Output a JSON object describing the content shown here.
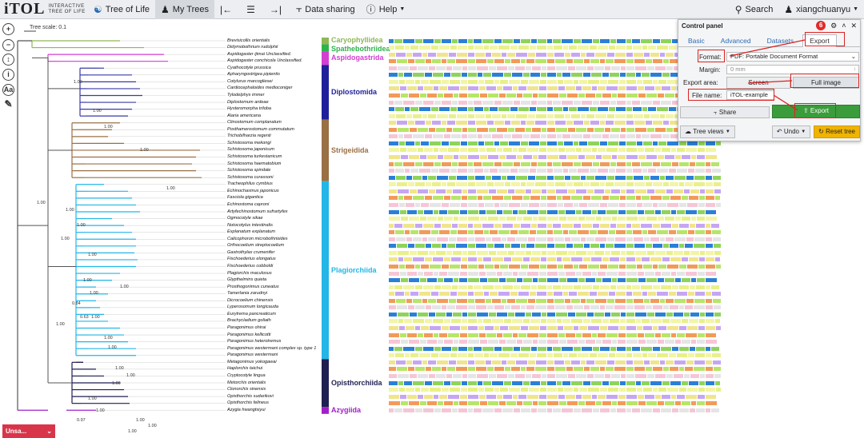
{
  "topbar": {
    "logo": "iTOL",
    "logo_sub1": "INTERACTIVE",
    "logo_sub2": "TREE OF LIFE",
    "tree_of_life": "Tree of Life",
    "my_trees": "My Trees",
    "data_sharing": "Data sharing",
    "help": "Help",
    "search": "Search",
    "user": "xiangchuanyu"
  },
  "tree": {
    "scale_label": "Tree scale: 0.1",
    "taxa": [
      "Brevisicollis orientalis",
      "Didymobothrium rudolphii",
      "Aspidogaster ijimai Unclassified.",
      "Aspidogaster conchicola Unclassified.",
      "Cyathocotyle prussica",
      "Apharyngostrigea pipientis",
      "Cotylurus marcogliesei",
      "Cardiocephaloides medioconiger",
      "Tylodelphys immer",
      "Diplostomum ardeae",
      "Hysteromorpha triloba",
      "Alaria americana",
      "Clinostomum complanatum",
      "Posthamerostomum commutatum",
      "Trichobilharzia regenti",
      "Schistosoma mekongi",
      "Schistosoma japonicum",
      "Schistosoma turkestanicum",
      "Schistosoma haematobium",
      "Schistosoma spindale",
      "Schistosoma curassoni",
      "Tracheophilus cymbius",
      "Echinochasmus japonicus",
      "Fasciola gigantica",
      "Echinostoma caproni",
      "Artyfechinostomum sufrartyfex",
      "Ogmocotyle sikae",
      "Notocotylus intestinalis",
      "Explanatum explanatum",
      "Calicophoron microbothrioides",
      "Orthocoelium streptocoelium",
      "Gastrothylax crumenifer",
      "Fischoederius elongatus",
      "Fischoederius cobboldi",
      "Plagiorchis maculosus",
      "Glypthelmins quieta",
      "Prosthogonimus cuneatus",
      "Tamerlania zarudnyi",
      "Dicrocoelium chinensis",
      "Lyperosomum longicauda",
      "Eurytrema pancreaticum",
      "Brachycladium goliath",
      "Paragonimus ohirai",
      "Paragonimus kellicotti",
      "Paragonimus heterotremus",
      "Paragonimus westermani complex sp. type 1",
      "Paragonimus westermani",
      "Metagonimus yokogawai",
      "Haplorchis taichui",
      "Cryptocotyle lingua",
      "Metorchis orientalis",
      "Clonorchis sinensis",
      "Opisthorchis sudarikovi",
      "Opisthorchis felineus",
      "Azygia hwangtsiyui"
    ],
    "bootstrap": [
      "1.00",
      "1.00",
      "1.00",
      "1.00",
      "1.00",
      "1.00",
      "1.00",
      "1.00",
      "1.00",
      "1.00",
      "1.00",
      "0.63",
      "1.00",
      "1.00",
      "0.84",
      "1.00",
      "1.00",
      "1.00",
      "1.00",
      "1.00",
      "1.00",
      "1.00",
      "1.00",
      "0.97",
      "1.00",
      "1.00",
      "1.00",
      "1.00"
    ],
    "groups": [
      {
        "name": "Caryophyllidea",
        "color": "#8fb657"
      },
      {
        "name": "Spathebothriidea",
        "color": "#2db34a"
      },
      {
        "name": "Aspidogastrida",
        "color": "#d23fd2"
      },
      {
        "name": "Diplostomida",
        "color": "#1f1f9c"
      },
      {
        "name": "Strigeidida",
        "color": "#9a7045"
      },
      {
        "name": "Plagiorchiida",
        "color": "#23b6e6"
      },
      {
        "name": "Opisthorchiida",
        "color": "#1f1f52"
      },
      {
        "name": "Azygiida",
        "color": "#a11fc7"
      }
    ]
  },
  "panel": {
    "title": "Control panel",
    "tabs": [
      "Basic",
      "Advanced",
      "Datasets",
      "Export"
    ],
    "format_label": "Format:",
    "format_value": "PDF: Portable Document Format",
    "margin_label": "Margin:",
    "margin_value": "0 mm",
    "export_area_label": "Export area:",
    "screen_btn": "Screen",
    "full_image_btn": "Full image",
    "file_name_label": "File name:",
    "file_name_value": "iTOL-example",
    "share_btn": "Share",
    "export_btn": "Export",
    "tree_views_btn": "Tree views",
    "undo_btn": "Undo",
    "reset_btn": "Reset tree",
    "step_badge": "6"
  },
  "unsaved_label": "Unsa..."
}
